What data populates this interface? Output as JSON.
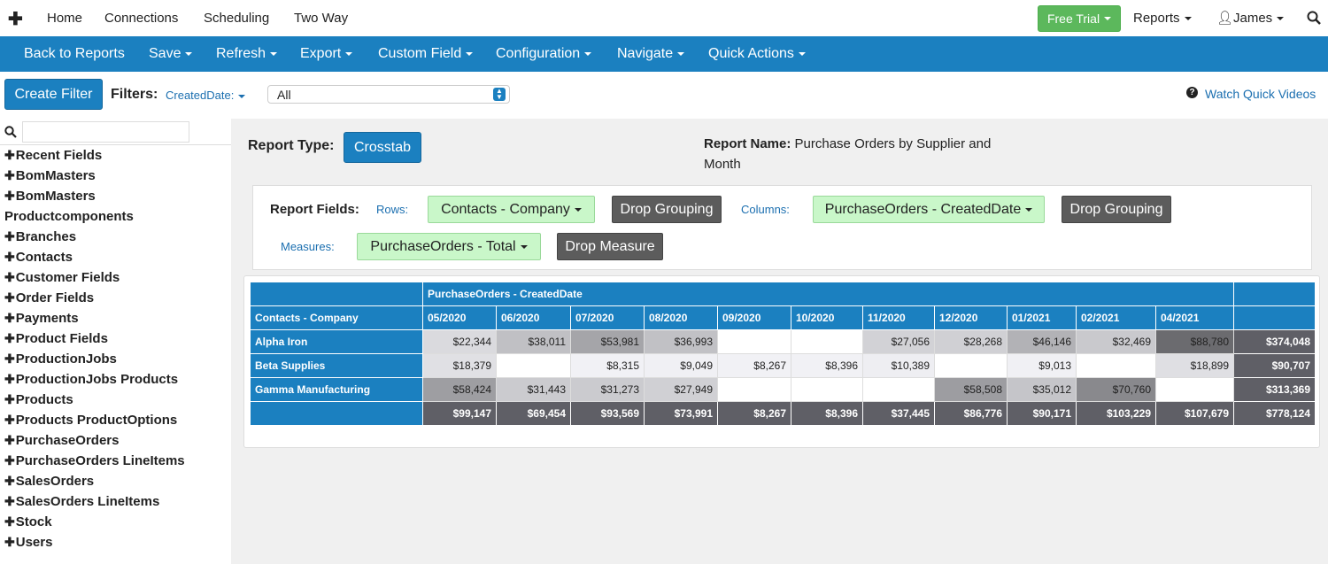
{
  "nav": {
    "items": [
      "Home",
      "Connections",
      "Scheduling",
      "Two Way"
    ],
    "free_trial": "Free Trial",
    "reports": "Reports",
    "user": "James"
  },
  "toolbar": {
    "items": [
      "Back to Reports",
      "Save",
      "Refresh",
      "Export",
      "Custom Field",
      "Configuration",
      "Navigate",
      "Quick Actions"
    ]
  },
  "filter_bar": {
    "create_filter": "Create Filter",
    "filters_label": "Filters:",
    "filter_field": "CreatedDate:",
    "filter_value": "All",
    "videos": "Watch Quick Videos"
  },
  "sidebar": {
    "items": [
      "Recent Fields",
      "BomMasters",
      "BomMasters Productcomponents",
      "Branches",
      "Contacts",
      "Customer Fields",
      "Order Fields",
      "Payments",
      "Product Fields",
      "ProductionJobs",
      "ProductionJobs Products",
      "Products",
      "Products ProductOptions",
      "PurchaseOrders",
      "PurchaseOrders LineItems",
      "SalesOrders",
      "SalesOrders LineItems",
      "Stock",
      "Users"
    ]
  },
  "report": {
    "type_label": "Report Type:",
    "type_value": "Crosstab",
    "name_label": "Report Name:",
    "name_value": "Purchase Orders by Supplier and Month",
    "fields_label": "Report Fields:",
    "rows_label": "Rows:",
    "rows_value": "Contacts - Company",
    "drop_grouping": "Drop Grouping",
    "columns_label": "Columns:",
    "columns_value": "PurchaseOrders - CreatedDate",
    "measures_label": "Measures:",
    "measures_value": "PurchaseOrders - Total",
    "drop_measure": "Drop Measure"
  },
  "table": {
    "group_header": "PurchaseOrders - CreatedDate",
    "row_header": "Contacts - Company",
    "columns": [
      "05/2020",
      "06/2020",
      "07/2020",
      "08/2020",
      "09/2020",
      "10/2020",
      "11/2020",
      "12/2020",
      "01/2021",
      "02/2021",
      "04/2021"
    ],
    "rows": [
      {
        "label": "Alpha Iron",
        "cells": [
          "$22,344",
          "$38,011",
          "$53,981",
          "$36,993",
          null,
          null,
          "$27,056",
          "$28,268",
          "$46,146",
          "$32,469",
          "$88,780"
        ],
        "total": "$374,048"
      },
      {
        "label": "Beta Supplies",
        "cells": [
          "$18,379",
          null,
          "$8,315",
          "$9,049",
          "$8,267",
          "$8,396",
          "$10,389",
          null,
          "$9,013",
          null,
          "$18,899"
        ],
        "total": "$90,707"
      },
      {
        "label": "Gamma Manufacturing",
        "cells": [
          "$58,424",
          "$31,443",
          "$31,273",
          "$27,949",
          null,
          null,
          null,
          "$58,508",
          "$35,012",
          "$70,760",
          null
        ],
        "total": "$313,369"
      }
    ],
    "totals": [
      "$99,147",
      "$69,454",
      "$93,569",
      "$73,991",
      "$8,267",
      "$8,396",
      "$37,445",
      "$86,776",
      "$90,171",
      "$103,229",
      "$107,679"
    ],
    "grand_total": "$778,124"
  }
}
